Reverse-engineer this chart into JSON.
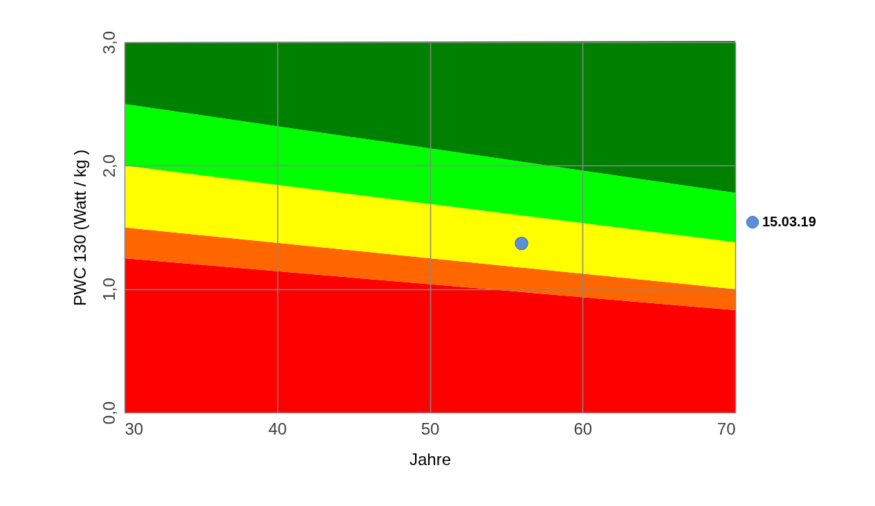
{
  "chart_data": {
    "type": "area",
    "xlabel": "Jahre",
    "ylabel": "PWC 130  (Watt / kg )",
    "x": [
      30,
      70
    ],
    "stacked": true,
    "xlim": [
      30,
      70
    ],
    "xticks": [
      30,
      40,
      50,
      60,
      70
    ],
    "ylim": [
      0,
      3
    ],
    "yticks": [
      {
        "value": 0,
        "label": "0,0"
      },
      {
        "value": 1,
        "label": "1,0"
      },
      {
        "value": 2,
        "label": "2,0"
      },
      {
        "value": 3,
        "label": "3,0"
      }
    ],
    "grid": true,
    "legend": "right",
    "series": [
      {
        "color": "#ff0000",
        "values": [
          1.25,
          0.83
        ]
      },
      {
        "color": "#ff6600",
        "values": [
          0.25,
          0.17
        ]
      },
      {
        "color": "#ffff00",
        "values": [
          0.5,
          0.38
        ]
      },
      {
        "color": "#00ff00",
        "values": [
          0.5,
          0.4
        ]
      },
      {
        "color": "#008000",
        "values": [
          0.5,
          1.23
        ]
      },
      {
        "type": "scatter",
        "name": "15.03.19",
        "color": "#5b8fd9",
        "x": [
          56
        ],
        "values": [
          1.37
        ],
        "marker": "circle"
      }
    ]
  }
}
